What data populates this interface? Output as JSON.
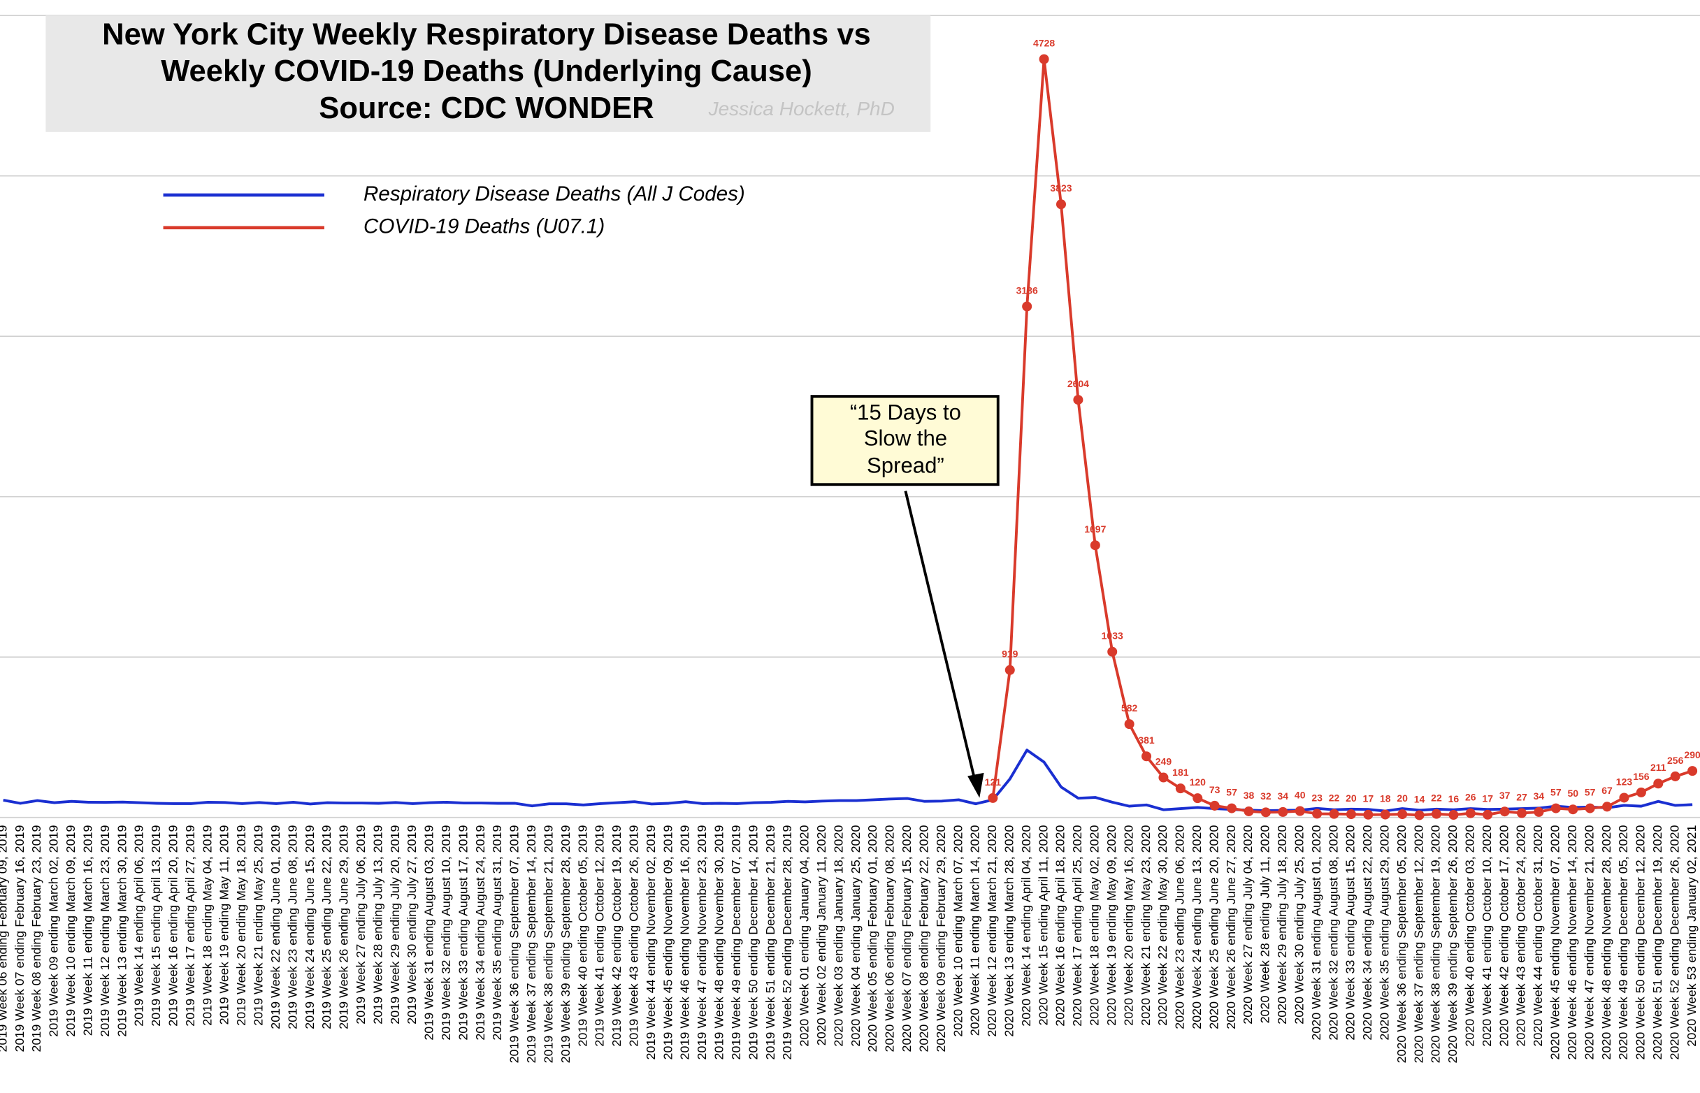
{
  "chart_data": {
    "type": "line",
    "title": [
      "New York City Weekly Respiratory Disease Deaths vs",
      "Weekly COVID-19 Deaths (Underlying Cause)",
      "Source: CDC WONDER"
    ],
    "author": "Jessica Hockett, PhD",
    "annotation": [
      "“15 Days to",
      "Slow the",
      "Spread”"
    ],
    "categories": [
      "2019 Week 06 ending February 09, 2019",
      "2019 Week 07 ending February 16, 2019",
      "2019 Week 08 ending February 23, 2019",
      "2019 Week 09 ending March 02, 2019",
      "2019 Week 10 ending March 09, 2019",
      "2019 Week 11 ending March 16, 2019",
      "2019 Week 12 ending March 23, 2019",
      "2019 Week 13 ending March 30, 2019",
      "2019 Week 14 ending April 06, 2019",
      "2019 Week 15 ending April 13, 2019",
      "2019 Week 16 ending April 20, 2019",
      "2019 Week 17 ending April 27, 2019",
      "2019 Week 18 ending May 04, 2019",
      "2019 Week 19 ending May 11, 2019",
      "2019 Week 20 ending May 18, 2019",
      "2019 Week 21 ending May 25, 2019",
      "2019 Week 22 ending June 01, 2019",
      "2019 Week 23 ending June 08, 2019",
      "2019 Week 24 ending June 15, 2019",
      "2019 Week 25 ending June 22, 2019",
      "2019 Week 26 ending June 29, 2019",
      "2019 Week 27 ending July 06, 2019",
      "2019 Week 28 ending July 13, 2019",
      "2019 Week 29 ending July 20, 2019",
      "2019 Week 30 ending July 27, 2019",
      "2019 Week 31 ending August 03, 2019",
      "2019 Week 32 ending August 10, 2019",
      "2019 Week 33 ending August 17, 2019",
      "2019 Week 34 ending August 24, 2019",
      "2019 Week 35 ending August 31, 2019",
      "2019 Week 36 ending September 07, 2019",
      "2019 Week 37 ending September 14, 2019",
      "2019 Week 38 ending September 21, 2019",
      "2019 Week 39 ending September 28, 2019",
      "2019 Week 40 ending October 05, 2019",
      "2019 Week 41 ending October 12, 2019",
      "2019 Week 42 ending October 19, 2019",
      "2019 Week 43 ending October 26, 2019",
      "2019 Week 44 ending November 02, 2019",
      "2019 Week 45 ending November 09, 2019",
      "2019 Week 46 ending November 16, 2019",
      "2019 Week 47 ending November 23, 2019",
      "2019 Week 48 ending November 30, 2019",
      "2019 Week 49 ending December 07, 2019",
      "2019 Week 50 ending December 14, 2019",
      "2019 Week 51 ending December 21, 2019",
      "2019 Week 52 ending December 28, 2019",
      "2020 Week 01 ending January 04, 2020",
      "2020 Week 02 ending January 11, 2020",
      "2020 Week 03 ending January 18, 2020",
      "2020 Week 04 ending January 25, 2020",
      "2020 Week 05 ending February 01, 2020",
      "2020 Week 06 ending February 08, 2020",
      "2020 Week 07 ending February 15, 2020",
      "2020 Week 08 ending February 22, 2020",
      "2020 Week 09 ending February 29, 2020",
      "2020 Week 10 ending March 07, 2020",
      "2020 Week 11 ending March 14, 2020",
      "2020 Week 12 ending March 21, 2020",
      "2020 Week 13 ending March 28, 2020",
      "2020 Week 14 ending April 04, 2020",
      "2020 Week 15 ending April 11, 2020",
      "2020 Week 16 ending April 18, 2020",
      "2020 Week 17 ending April 25, 2020",
      "2020 Week 18 ending May 02, 2020",
      "2020 Week 19 ending May 09, 2020",
      "2020 Week 20 ending May 16, 2020",
      "2020 Week 21 ending May 23, 2020",
      "2020 Week 22 ending May 30, 2020",
      "2020 Week 23 ending June 06, 2020",
      "2020 Week 24 ending June 13, 2020",
      "2020 Week 25 ending June 20, 2020",
      "2020 Week 26 ending June 27, 2020",
      "2020 Week 27 ending July 04, 2020",
      "2020 Week 28 ending July 11, 2020",
      "2020 Week 29 ending July 18, 2020",
      "2020 Week 30 ending July 25, 2020",
      "2020 Week 31 ending August 01, 2020",
      "2020 Week 32 ending August 08, 2020",
      "2020 Week 33 ending August 15, 2020",
      "2020 Week 34 ending August 22, 2020",
      "2020 Week 35 ending August 29, 2020",
      "2020 Week 36 ending September 05, 2020",
      "2020 Week 37 ending September 12, 2020",
      "2020 Week 38 ending September 19, 2020",
      "2020 Week 39 ending September 26, 2020",
      "2020 Week 40 ending October 03, 2020",
      "2020 Week 41 ending October 10, 2020",
      "2020 Week 42 ending October 17, 2020",
      "2020 Week 43 ending October 24, 2020",
      "2020 Week 44 ending October 31, 2020",
      "2020 Week 45 ending November 07, 2020",
      "2020 Week 46 ending November 14, 2020",
      "2020 Week 47 ending November 21, 2020",
      "2020 Week 48 ending November 28, 2020",
      "2020 Week 49 ending December 05, 2020",
      "2020 Week 50 ending December 12, 2020",
      "2020 Week 51 ending December 19, 2020",
      "2020 Week 52 ending December 26, 2020",
      "2020 Week 53 ending January 02, 2021"
    ],
    "series": [
      {
        "name": "Respiratory Disease Deaths (All J Codes)",
        "color": "#1a2fd1",
        "markers": false,
        "data_labels": false,
        "values": [
          108,
          88,
          105,
          92,
          100,
          95,
          94,
          96,
          92,
          88,
          86,
          86,
          95,
          93,
          86,
          93,
          86,
          95,
          84,
          92,
          90,
          90,
          88,
          93,
          86,
          92,
          95,
          90,
          90,
          88,
          88,
          72,
          85,
          85,
          78,
          86,
          92,
          98,
          84,
          88,
          98,
          86,
          88,
          86,
          92,
          94,
          100,
          97,
          102,
          105,
          105,
          110,
          115,
          118,
          100,
          102,
          110,
          85,
          110,
          240,
          420,
          345,
          190,
          120,
          125,
          95,
          70,
          78,
          48,
          55,
          62,
          55,
          50,
          45,
          42,
          44,
          45,
          56,
          48,
          52,
          50,
          40,
          55,
          45,
          52,
          48,
          55,
          50,
          52,
          55,
          58,
          70,
          62,
          65,
          60,
          75,
          70,
          100,
          75,
          80
        ]
      },
      {
        "name": "COVID-19 Deaths (U07.1)",
        "color": "#d93a2b",
        "markers": true,
        "data_labels": true,
        "values": [
          null,
          null,
          null,
          null,
          null,
          null,
          null,
          null,
          null,
          null,
          null,
          null,
          null,
          null,
          null,
          null,
          null,
          null,
          null,
          null,
          null,
          null,
          null,
          null,
          null,
          null,
          null,
          null,
          null,
          null,
          null,
          null,
          null,
          null,
          null,
          null,
          null,
          null,
          null,
          null,
          null,
          null,
          null,
          null,
          null,
          null,
          null,
          null,
          null,
          null,
          null,
          null,
          null,
          null,
          null,
          null,
          null,
          null,
          121,
          919,
          3186,
          4728,
          3823,
          2604,
          1697,
          1033,
          582,
          381,
          249,
          181,
          120,
          73,
          57,
          38,
          32,
          34,
          40,
          23,
          22,
          20,
          17,
          18,
          20,
          14,
          22,
          16,
          26,
          17,
          37,
          27,
          34,
          57,
          50,
          57,
          67,
          123,
          156,
          211,
          256,
          290
        ]
      }
    ],
    "ylim": [
      0,
      5000
    ],
    "yticks": [
      0,
      1000,
      2000,
      3000,
      4000,
      5000
    ],
    "grid": true
  }
}
